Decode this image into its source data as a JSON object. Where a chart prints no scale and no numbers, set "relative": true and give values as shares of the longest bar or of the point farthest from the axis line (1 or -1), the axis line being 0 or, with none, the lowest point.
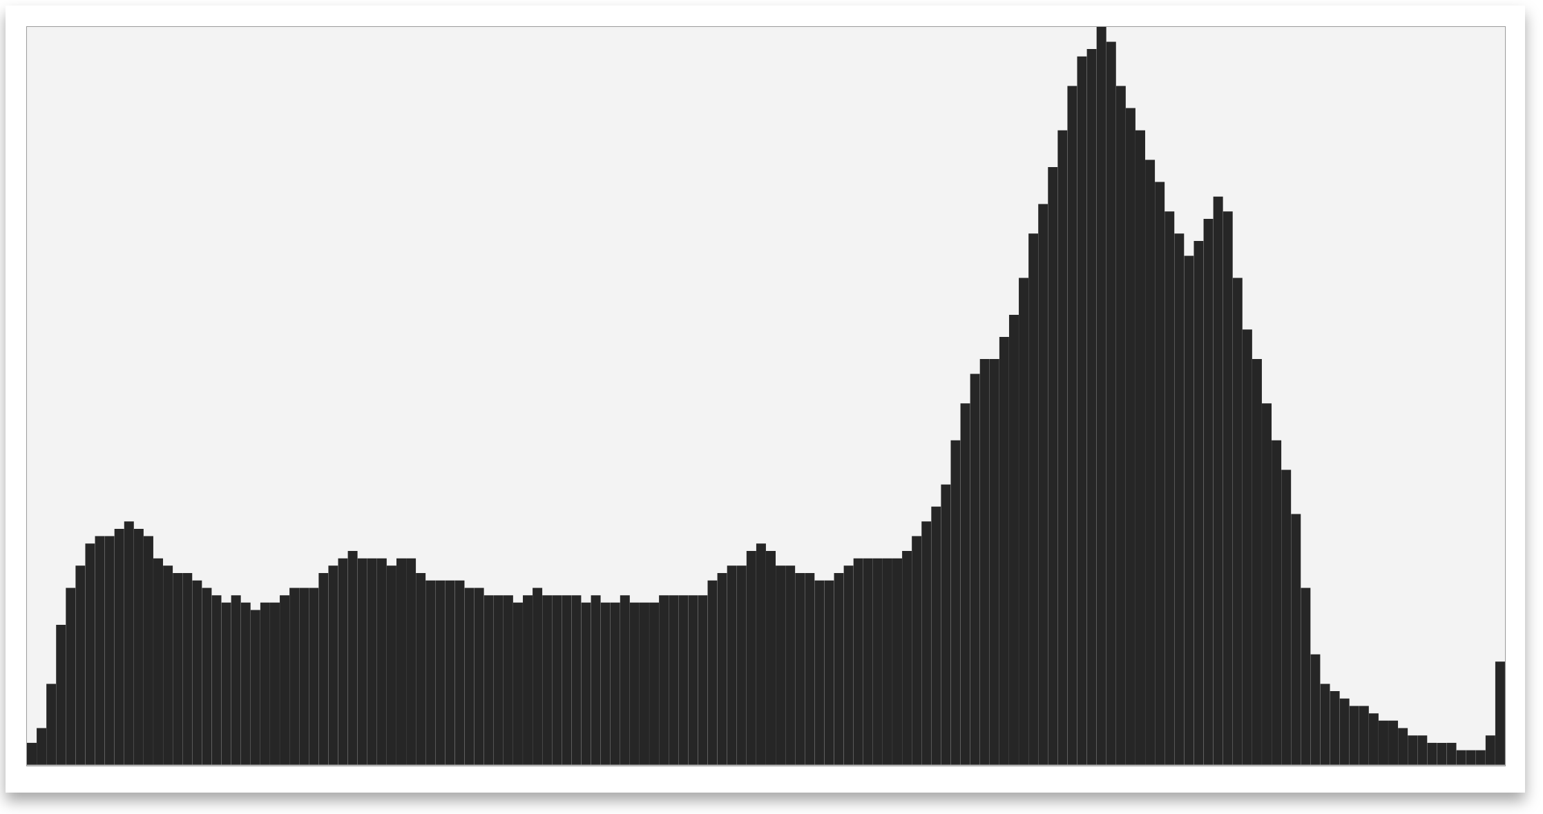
{
  "chart_data": {
    "type": "bar",
    "relative": true,
    "color": "#262626",
    "categories": [
      null,
      null,
      null,
      null,
      null,
      null,
      null,
      null,
      null,
      null,
      null,
      null,
      null,
      null,
      null,
      null,
      null,
      null,
      null,
      null,
      null,
      null,
      null,
      null,
      null,
      null,
      null,
      null,
      null,
      null,
      null,
      null,
      null,
      null,
      null,
      null,
      null,
      null,
      null,
      null,
      null,
      null,
      null,
      null,
      null,
      null,
      null,
      null,
      null,
      null,
      null,
      null,
      null,
      null,
      null,
      null,
      null,
      null,
      null,
      null,
      null,
      null,
      null,
      null,
      null,
      null,
      null,
      null,
      null,
      null,
      null,
      null,
      null,
      null,
      null,
      null,
      null,
      null,
      null,
      null,
      null,
      null,
      null,
      null,
      null,
      null,
      null,
      null,
      null,
      null,
      null,
      null,
      null,
      null,
      null,
      null,
      null,
      null,
      null,
      null,
      null,
      null,
      null,
      null,
      null,
      null,
      null,
      null,
      null,
      null,
      null,
      null,
      null,
      null,
      null,
      null,
      null,
      null,
      null,
      null,
      null,
      null,
      null,
      null,
      null,
      null,
      null,
      null,
      null,
      null,
      null,
      null,
      null,
      null,
      null,
      null,
      null,
      null,
      null,
      null,
      null,
      null,
      null,
      null,
      null,
      null,
      null,
      null,
      null,
      null,
      null,
      null
    ],
    "values": [
      0.03,
      0.05,
      0.11,
      0.19,
      0.24,
      0.27,
      0.3,
      0.31,
      0.31,
      0.32,
      0.33,
      0.32,
      0.31,
      0.28,
      0.27,
      0.26,
      0.26,
      0.25,
      0.24,
      0.23,
      0.22,
      0.23,
      0.22,
      0.21,
      0.22,
      0.22,
      0.23,
      0.24,
      0.24,
      0.24,
      0.26,
      0.27,
      0.28,
      0.29,
      0.28,
      0.28,
      0.28,
      0.27,
      0.28,
      0.28,
      0.26,
      0.25,
      0.25,
      0.25,
      0.25,
      0.24,
      0.24,
      0.23,
      0.23,
      0.23,
      0.22,
      0.23,
      0.24,
      0.23,
      0.23,
      0.23,
      0.23,
      0.22,
      0.23,
      0.22,
      0.22,
      0.23,
      0.22,
      0.22,
      0.22,
      0.23,
      0.23,
      0.23,
      0.23,
      0.23,
      0.25,
      0.26,
      0.27,
      0.27,
      0.29,
      0.3,
      0.29,
      0.27,
      0.27,
      0.26,
      0.26,
      0.25,
      0.25,
      0.26,
      0.27,
      0.28,
      0.28,
      0.28,
      0.28,
      0.28,
      0.29,
      0.31,
      0.33,
      0.35,
      0.38,
      0.44,
      0.49,
      0.53,
      0.55,
      0.55,
      0.58,
      0.61,
      0.66,
      0.72,
      0.76,
      0.81,
      0.86,
      0.92,
      0.96,
      0.97,
      1.0,
      0.98,
      0.92,
      0.89,
      0.86,
      0.82,
      0.79,
      0.75,
      0.72,
      0.69,
      0.71,
      0.74,
      0.77,
      0.75,
      0.66,
      0.59,
      0.55,
      0.49,
      0.44,
      0.4,
      0.34,
      0.24,
      0.15,
      0.11,
      0.1,
      0.09,
      0.08,
      0.08,
      0.07,
      0.06,
      0.06,
      0.05,
      0.04,
      0.04,
      0.03,
      0.03,
      0.03,
      0.02,
      0.02,
      0.02,
      0.04,
      0.14
    ]
  }
}
